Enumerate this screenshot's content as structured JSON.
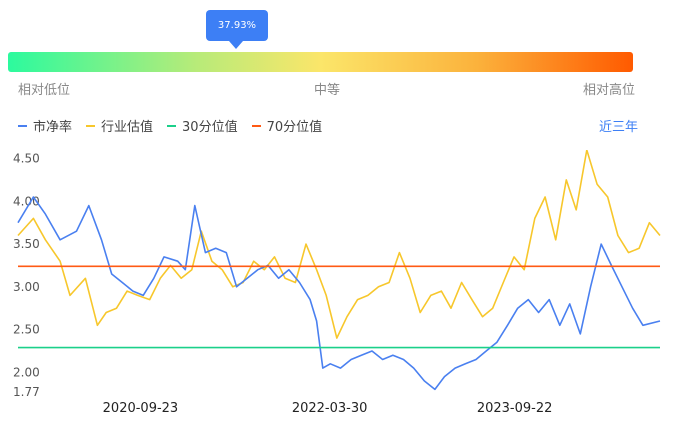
{
  "percentile": {
    "value": 0.3793,
    "label": "37.93%",
    "low_label": "相对低位",
    "mid_label": "中等",
    "high_label": "相对高位"
  },
  "legend": {
    "pb_label": "市净率",
    "industry_label": "行业估值",
    "p30_label": "30分位值",
    "p70_label": "70分位值",
    "range_label": "近三年"
  },
  "colors": {
    "pb": "#4a80f0",
    "industry": "#f7c72c",
    "p30": "#1bd08a",
    "p70": "#ff5a14"
  },
  "chart_data": {
    "type": "line",
    "x_range": [
      "2019-10-01",
      "2024-11-20"
    ],
    "ylim": [
      1.77,
      4.6
    ],
    "yticks": [
      "4.50",
      "4.00",
      "3.50",
      "3.00",
      "2.50",
      "2.00",
      "1.77"
    ],
    "ytick_values": [
      4.5,
      4.0,
      3.5,
      3.0,
      2.5,
      2.0,
      1.77
    ],
    "xticks": [
      "2020-09-23",
      "2022-03-30",
      "2023-09-22"
    ],
    "reference_lines": {
      "p30": 2.29,
      "p70": 3.24
    },
    "series": [
      {
        "name": "市净率",
        "x": [
          "2019-10-01",
          "2019-11-15",
          "2019-12-20",
          "2020-02-01",
          "2020-03-20",
          "2020-04-25",
          "2020-06-01",
          "2020-07-01",
          "2020-08-01",
          "2020-09-01",
          "2020-10-01",
          "2020-11-01",
          "2020-12-01",
          "2021-01-10",
          "2021-02-01",
          "2021-03-01",
          "2021-04-01",
          "2021-05-01",
          "2021-06-01",
          "2021-07-01",
          "2021-08-01",
          "2021-09-01",
          "2021-10-01",
          "2021-11-01",
          "2021-12-01",
          "2022-01-01",
          "2022-02-01",
          "2022-02-20",
          "2022-03-10",
          "2022-04-01",
          "2022-05-01",
          "2022-06-01",
          "2022-07-01",
          "2022-08-01",
          "2022-09-01",
          "2022-10-01",
          "2022-11-01",
          "2022-12-01",
          "2023-01-01",
          "2023-02-01",
          "2023-03-01",
          "2023-04-01",
          "2023-05-01",
          "2023-06-01",
          "2023-07-01",
          "2023-08-01",
          "2023-09-01",
          "2023-10-01",
          "2023-11-01",
          "2023-12-01",
          "2024-01-01",
          "2024-02-01",
          "2024-03-01",
          "2024-04-01",
          "2024-05-01",
          "2024-06-01",
          "2024-07-01",
          "2024-08-01",
          "2024-09-01",
          "2024-10-01",
          "2024-11-20"
        ],
        "values": [
          3.75,
          4.05,
          3.85,
          3.55,
          3.65,
          3.95,
          3.55,
          3.15,
          3.05,
          2.95,
          2.9,
          3.1,
          3.35,
          3.3,
          3.2,
          3.95,
          3.4,
          3.45,
          3.4,
          3.0,
          3.1,
          3.2,
          3.25,
          3.1,
          3.2,
          3.05,
          2.85,
          2.6,
          2.05,
          2.1,
          2.05,
          2.15,
          2.2,
          2.25,
          2.15,
          2.2,
          2.15,
          2.05,
          1.9,
          1.8,
          1.95,
          2.05,
          2.1,
          2.15,
          2.25,
          2.35,
          2.55,
          2.75,
          2.85,
          2.7,
          2.85,
          2.55,
          2.8,
          2.45,
          3.0,
          3.5,
          3.25,
          3.0,
          2.75,
          2.55,
          2.6
        ]
      },
      {
        "name": "行业估值",
        "x": [
          "2019-10-01",
          "2019-11-15",
          "2019-12-20",
          "2020-02-01",
          "2020-03-01",
          "2020-04-15",
          "2020-05-20",
          "2020-06-15",
          "2020-07-15",
          "2020-08-15",
          "2020-09-15",
          "2020-10-20",
          "2020-11-20",
          "2020-12-20",
          "2021-01-20",
          "2021-02-20",
          "2021-03-20",
          "2021-04-20",
          "2021-05-20",
          "2021-06-20",
          "2021-07-20",
          "2021-08-20",
          "2021-09-20",
          "2021-10-20",
          "2021-11-20",
          "2021-12-20",
          "2022-01-20",
          "2022-02-20",
          "2022-03-20",
          "2022-04-20",
          "2022-05-20",
          "2022-06-20",
          "2022-07-20",
          "2022-08-20",
          "2022-09-20",
          "2022-10-20",
          "2022-11-20",
          "2022-12-20",
          "2023-01-20",
          "2023-02-20",
          "2023-03-20",
          "2023-04-20",
          "2023-05-20",
          "2023-06-20",
          "2023-07-20",
          "2023-08-20",
          "2023-09-20",
          "2023-10-20",
          "2023-11-20",
          "2023-12-20",
          "2024-01-20",
          "2024-02-20",
          "2024-03-20",
          "2024-04-20",
          "2024-05-20",
          "2024-06-20",
          "2024-07-20",
          "2024-08-20",
          "2024-09-20",
          "2024-10-20",
          "2024-11-20"
        ],
        "values": [
          3.6,
          3.8,
          3.55,
          3.3,
          2.9,
          3.1,
          2.55,
          2.7,
          2.75,
          2.95,
          2.9,
          2.85,
          3.1,
          3.25,
          3.1,
          3.2,
          3.65,
          3.3,
          3.2,
          3.0,
          3.05,
          3.3,
          3.2,
          3.35,
          3.1,
          3.05,
          3.5,
          3.2,
          2.9,
          2.4,
          2.65,
          2.85,
          2.9,
          3.0,
          3.05,
          3.4,
          3.1,
          2.7,
          2.9,
          2.95,
          2.75,
          3.05,
          2.85,
          2.65,
          2.75,
          3.05,
          3.35,
          3.2,
          3.8,
          4.05,
          3.55,
          4.25,
          3.9,
          4.6,
          4.2,
          4.05,
          3.6,
          3.4,
          3.45,
          3.75,
          3.6
        ]
      }
    ]
  }
}
